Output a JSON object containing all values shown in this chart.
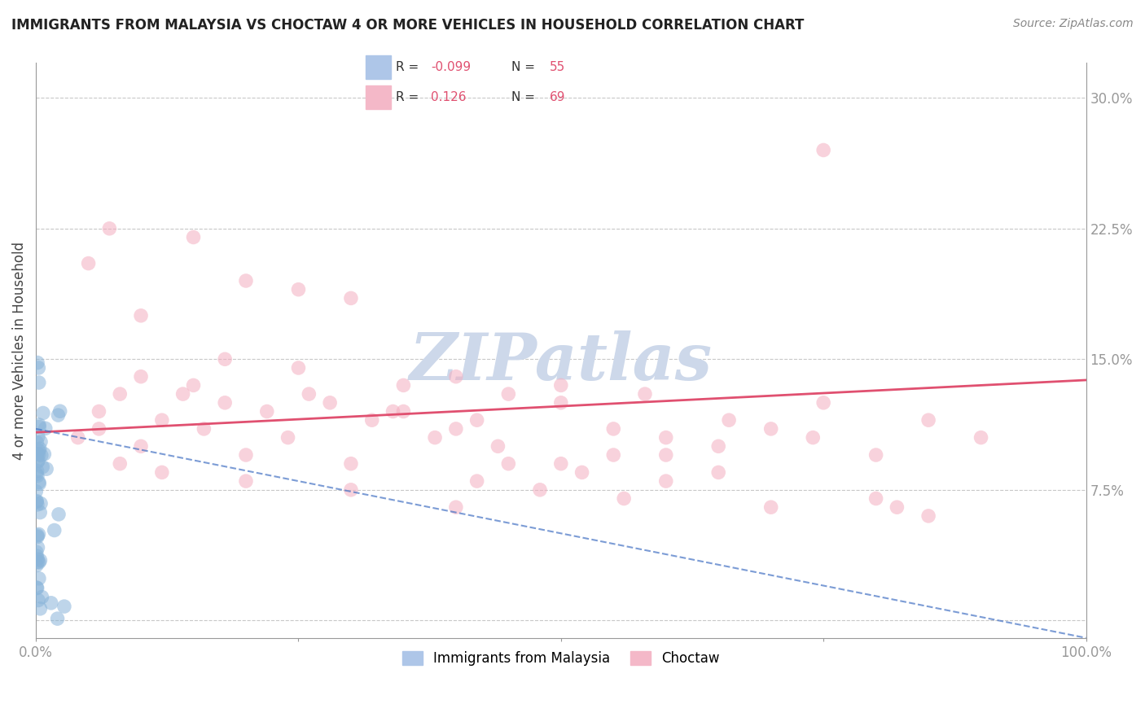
{
  "title": "IMMIGRANTS FROM MALAYSIA VS CHOCTAW 4 OR MORE VEHICLES IN HOUSEHOLD CORRELATION CHART",
  "source": "Source: ZipAtlas.com",
  "ylabel": "4 or more Vehicles in Household",
  "xlim": [
    0.0,
    100.0
  ],
  "ylim": [
    -1.0,
    32.0
  ],
  "ytick_vals": [
    0.0,
    7.5,
    15.0,
    22.5,
    30.0
  ],
  "ytick_labels": [
    "",
    "7.5%",
    "15.0%",
    "22.5%",
    "30.0%"
  ],
  "xtick_vals": [
    0.0,
    25.0,
    50.0,
    75.0,
    100.0
  ],
  "xtick_labels": [
    "0.0%",
    "",
    "",
    "",
    "100.0%"
  ],
  "grid_color": "#c8c8c8",
  "background_color": "#ffffff",
  "watermark": "ZIPatlas",
  "watermark_color": "#cdd8ea",
  "series1_label": "Immigrants from Malaysia",
  "series1_color": "#89b4d9",
  "series1_line_color": "#4472c4",
  "series1_R": -0.099,
  "series1_N": 55,
  "series2_label": "Choctaw",
  "series2_color": "#f4aec0",
  "series2_line_color": "#e05070",
  "series2_R": 0.126,
  "series2_N": 69,
  "pink_intercept": 10.8,
  "pink_slope_per100": 3.0,
  "blue_intercept": 11.0,
  "blue_slope_per100": -12.0
}
